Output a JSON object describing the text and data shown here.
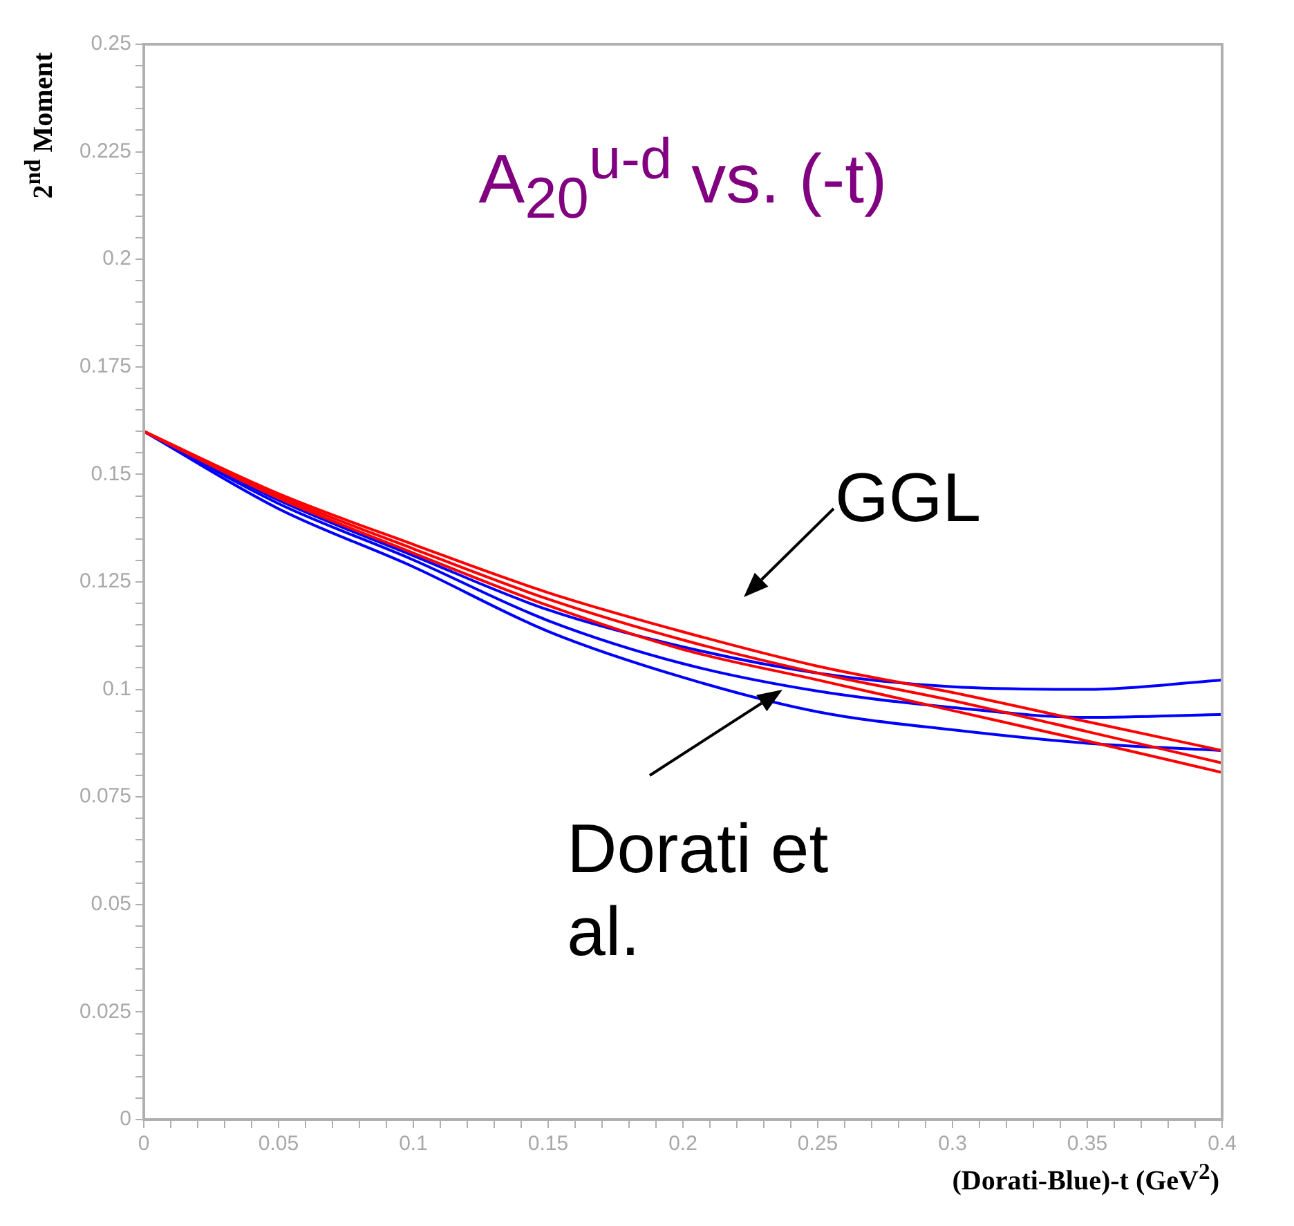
{
  "chart_data": {
    "type": "line",
    "title": "A$_{20}$$^{u-d}$ vs. (-t)",
    "xlabel": "(Dorati-Blue)-t (GeV$^{2}$)",
    "ylabel": "2$^{nd}$ Moment",
    "x": [
      0,
      0.05,
      0.1,
      0.15,
      0.2,
      0.25,
      0.3,
      0.35,
      0.4
    ],
    "series": [
      {
        "color": "#ff0000",
        "values": [
          0.16,
          0.1455,
          0.1337,
          0.1225,
          0.1134,
          0.1054,
          0.0993,
          0.0925,
          0.0858
        ]
      },
      {
        "color": "#ff0000",
        "values": [
          0.16,
          0.145,
          0.1327,
          0.121,
          0.1115,
          0.1038,
          0.0974,
          0.0902,
          0.0829
        ]
      },
      {
        "color": "#ff0000",
        "values": [
          0.16,
          0.1445,
          0.1317,
          0.1195,
          0.1093,
          0.1022,
          0.0951,
          0.088,
          0.0807
        ]
      },
      {
        "color": "#0000ff",
        "values": [
          0.16,
          0.144,
          0.1311,
          0.1185,
          0.1099,
          0.1038,
          0.1006,
          0.1,
          0.1022
        ]
      },
      {
        "color": "#0000ff",
        "values": [
          0.16,
          0.1432,
          0.1301,
          0.116,
          0.106,
          0.0996,
          0.0958,
          0.0935,
          0.0942
        ]
      },
      {
        "color": "#0000ff",
        "values": [
          0.16,
          0.142,
          0.1285,
          0.1135,
          0.1028,
          0.0948,
          0.0906,
          0.0875,
          0.0858
        ]
      }
    ],
    "xlim": [
      0,
      0.4
    ],
    "ylim": [
      0,
      0.25
    ],
    "xticks": [
      0,
      {
        "value": 0.01,
        "label": null
      },
      {
        "value": 0.02,
        "label": null
      },
      {
        "value": 0.03,
        "label": null
      },
      {
        "value": 0.04,
        "label": null
      },
      0.05,
      {
        "value": 0.06,
        "label": null
      },
      {
        "value": 0.07,
        "label": null
      },
      {
        "value": 0.08,
        "label": null
      },
      {
        "value": 0.09,
        "label": null
      },
      0.1,
      {
        "value": 0.11,
        "label": null
      },
      {
        "value": 0.12,
        "label": null
      },
      {
        "value": 0.13,
        "label": null
      },
      {
        "value": 0.14,
        "label": null
      },
      0.15,
      {
        "value": 0.16,
        "label": null
      },
      {
        "value": 0.17,
        "label": null
      },
      {
        "value": 0.18,
        "label": null
      },
      {
        "value": 0.19,
        "label": null
      },
      0.2,
      {
        "value": 0.21,
        "label": null
      },
      {
        "value": 0.22,
        "label": null
      },
      {
        "value": 0.23,
        "label": null
      },
      {
        "value": 0.24,
        "label": null
      },
      0.25,
      {
        "value": 0.26,
        "label": null
      },
      {
        "value": 0.27,
        "label": null
      },
      {
        "value": 0.28,
        "label": null
      },
      {
        "value": 0.29,
        "label": null
      },
      0.3,
      {
        "value": 0.31,
        "label": null
      },
      {
        "value": 0.32,
        "label": null
      },
      {
        "value": 0.33,
        "label": null
      },
      {
        "value": 0.34,
        "label": null
      },
      0.35,
      {
        "value": 0.36,
        "label": null
      },
      {
        "value": 0.37,
        "label": null
      },
      {
        "value": 0.38,
        "label": null
      },
      {
        "value": 0.39,
        "label": null
      },
      0.4
    ],
    "yticks": [
      0,
      {
        "value": 0.005,
        "label": null
      },
      {
        "value": 0.01,
        "label": null
      },
      {
        "value": 0.015,
        "label": null
      },
      {
        "value": 0.02,
        "label": null
      },
      0.025,
      {
        "value": 0.03,
        "label": null
      },
      {
        "value": 0.035,
        "label": null
      },
      {
        "value": 0.04,
        "label": null
      },
      {
        "value": 0.045,
        "label": null
      },
      0.05,
      {
        "value": 0.055,
        "label": null
      },
      {
        "value": 0.06,
        "label": null
      },
      {
        "value": 0.065,
        "label": null
      },
      {
        "value": 0.07,
        "label": null
      },
      0.075,
      {
        "value": 0.08,
        "label": null
      },
      {
        "value": 0.085,
        "label": null
      },
      {
        "value": 0.09,
        "label": null
      },
      {
        "value": 0.095,
        "label": null
      },
      0.1,
      {
        "value": 0.105,
        "label": null
      },
      {
        "value": 0.11,
        "label": null
      },
      {
        "value": 0.115,
        "label": null
      },
      {
        "value": 0.12,
        "label": null
      },
      0.125,
      {
        "value": 0.13,
        "label": null
      },
      {
        "value": 0.135,
        "label": null
      },
      {
        "value": 0.14,
        "label": null
      },
      {
        "value": 0.145,
        "label": null
      },
      0.15,
      {
        "value": 0.155,
        "label": null
      },
      {
        "value": 0.16,
        "label": null
      },
      {
        "value": 0.165,
        "label": null
      },
      {
        "value": 0.17,
        "label": null
      },
      0.175,
      {
        "value": 0.18,
        "label": null
      },
      {
        "value": 0.185,
        "label": null
      },
      {
        "value": 0.19,
        "label": null
      },
      {
        "value": 0.195,
        "label": null
      },
      0.2,
      {
        "value": 0.205,
        "label": null
      },
      {
        "value": 0.21,
        "label": null
      },
      {
        "value": 0.215,
        "label": null
      },
      {
        "value": 0.22,
        "label": null
      },
      0.225,
      {
        "value": 0.23,
        "label": null
      },
      {
        "value": 0.235,
        "label": null
      },
      {
        "value": 0.24,
        "label": null
      },
      {
        "value": 0.245,
        "label": null
      },
      0.25
    ],
    "grid": false,
    "legend": false,
    "marker": "none",
    "line_style": "solid",
    "annotations": [
      "GGL",
      {
        "text": "Dorati et al.",
        "x": 0.237,
        "y": 0.1
      }
    ]
  }
}
